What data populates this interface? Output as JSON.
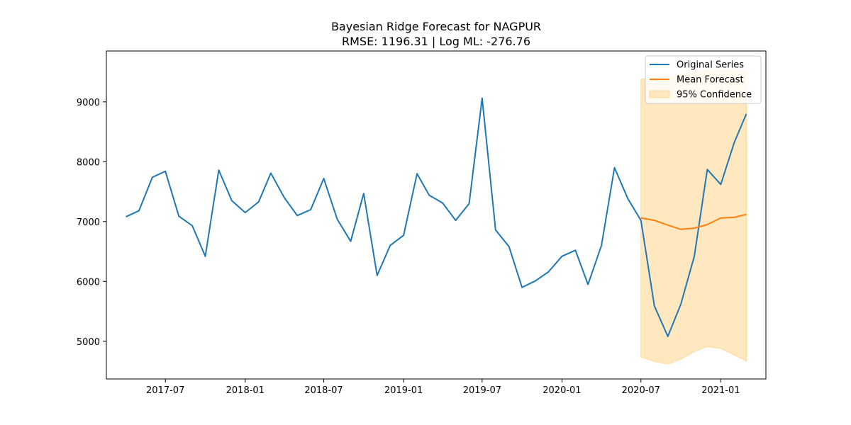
{
  "chart_data": {
    "type": "line",
    "title": "Bayesian Ridge Forecast for NAGPUR",
    "subtitle": "RMSE: 1196.31 | Log ML: -276.76",
    "xlabel": "",
    "ylabel": "",
    "x_ticks": [
      "2017-07",
      "2018-01",
      "2018-07",
      "2019-01",
      "2019-07",
      "2020-01",
      "2020-07",
      "2021-01"
    ],
    "y_ticks": [
      5000,
      6000,
      7000,
      8000,
      9000
    ],
    "xlim": [
      "2017-02-15",
      "2021-04-15"
    ],
    "ylim": [
      4370,
      9850
    ],
    "grid": false,
    "legend_position": "top-right",
    "series": [
      {
        "name": "Original Series",
        "color": "#1f77b4",
        "points": [
          [
            "2017-04-01",
            7080
          ],
          [
            "2017-05-01",
            7180
          ],
          [
            "2017-06-01",
            7740
          ],
          [
            "2017-07-01",
            7840
          ],
          [
            "2017-08-01",
            7090
          ],
          [
            "2017-09-01",
            6930
          ],
          [
            "2017-10-01",
            6420
          ],
          [
            "2017-11-01",
            7860
          ],
          [
            "2017-12-01",
            7350
          ],
          [
            "2018-01-01",
            7150
          ],
          [
            "2018-02-01",
            7330
          ],
          [
            "2018-03-01",
            7810
          ],
          [
            "2018-04-01",
            7400
          ],
          [
            "2018-05-01",
            7100
          ],
          [
            "2018-06-01",
            7200
          ],
          [
            "2018-07-01",
            7720
          ],
          [
            "2018-08-01",
            7040
          ],
          [
            "2018-09-01",
            6670
          ],
          [
            "2018-10-01",
            7470
          ],
          [
            "2018-11-01",
            6100
          ],
          [
            "2018-12-01",
            6600
          ],
          [
            "2019-01-01",
            6770
          ],
          [
            "2019-02-01",
            7800
          ],
          [
            "2019-03-01",
            7440
          ],
          [
            "2019-04-01",
            7310
          ],
          [
            "2019-05-01",
            7020
          ],
          [
            "2019-06-01",
            7300
          ],
          [
            "2019-07-01",
            9060
          ],
          [
            "2019-08-01",
            6860
          ],
          [
            "2019-09-01",
            6580
          ],
          [
            "2019-10-01",
            5900
          ],
          [
            "2019-11-01",
            6010
          ],
          [
            "2019-12-01",
            6160
          ],
          [
            "2020-01-01",
            6420
          ],
          [
            "2020-02-01",
            6520
          ],
          [
            "2020-03-01",
            5950
          ],
          [
            "2020-04-01",
            6600
          ],
          [
            "2020-05-01",
            7900
          ],
          [
            "2020-06-01",
            7380
          ],
          [
            "2020-07-01",
            7020
          ],
          [
            "2020-08-01",
            5590
          ],
          [
            "2020-09-01",
            5080
          ],
          [
            "2020-10-01",
            5620
          ],
          [
            "2020-11-01",
            6420
          ],
          [
            "2020-12-01",
            7870
          ],
          [
            "2021-01-01",
            7620
          ],
          [
            "2021-02-01",
            8320
          ],
          [
            "2021-03-01",
            8800
          ]
        ]
      },
      {
        "name": "Mean Forecast",
        "color": "#ff7f0e",
        "points": [
          [
            "2020-07-01",
            7060
          ],
          [
            "2020-08-01",
            7020
          ],
          [
            "2020-09-01",
            6940
          ],
          [
            "2020-10-01",
            6870
          ],
          [
            "2020-11-01",
            6890
          ],
          [
            "2020-12-01",
            6950
          ],
          [
            "2021-01-01",
            7060
          ],
          [
            "2021-02-01",
            7070
          ],
          [
            "2021-03-01",
            7120
          ]
        ]
      }
    ],
    "confidence_band": {
      "name": "95% Confidence",
      "color": "#ffe8bf",
      "edge_color": "#ffd99a",
      "x": [
        "2020-07-01",
        "2020-08-01",
        "2020-09-01",
        "2020-10-01",
        "2020-11-01",
        "2020-12-01",
        "2021-01-01",
        "2021-02-01",
        "2021-03-01"
      ],
      "upper": [
        9380,
        9400,
        9420,
        9460,
        9500,
        9520,
        9540,
        9520,
        9510
      ],
      "lower": [
        4740,
        4660,
        4620,
        4700,
        4830,
        4910,
        4880,
        4770,
        4670
      ]
    }
  }
}
